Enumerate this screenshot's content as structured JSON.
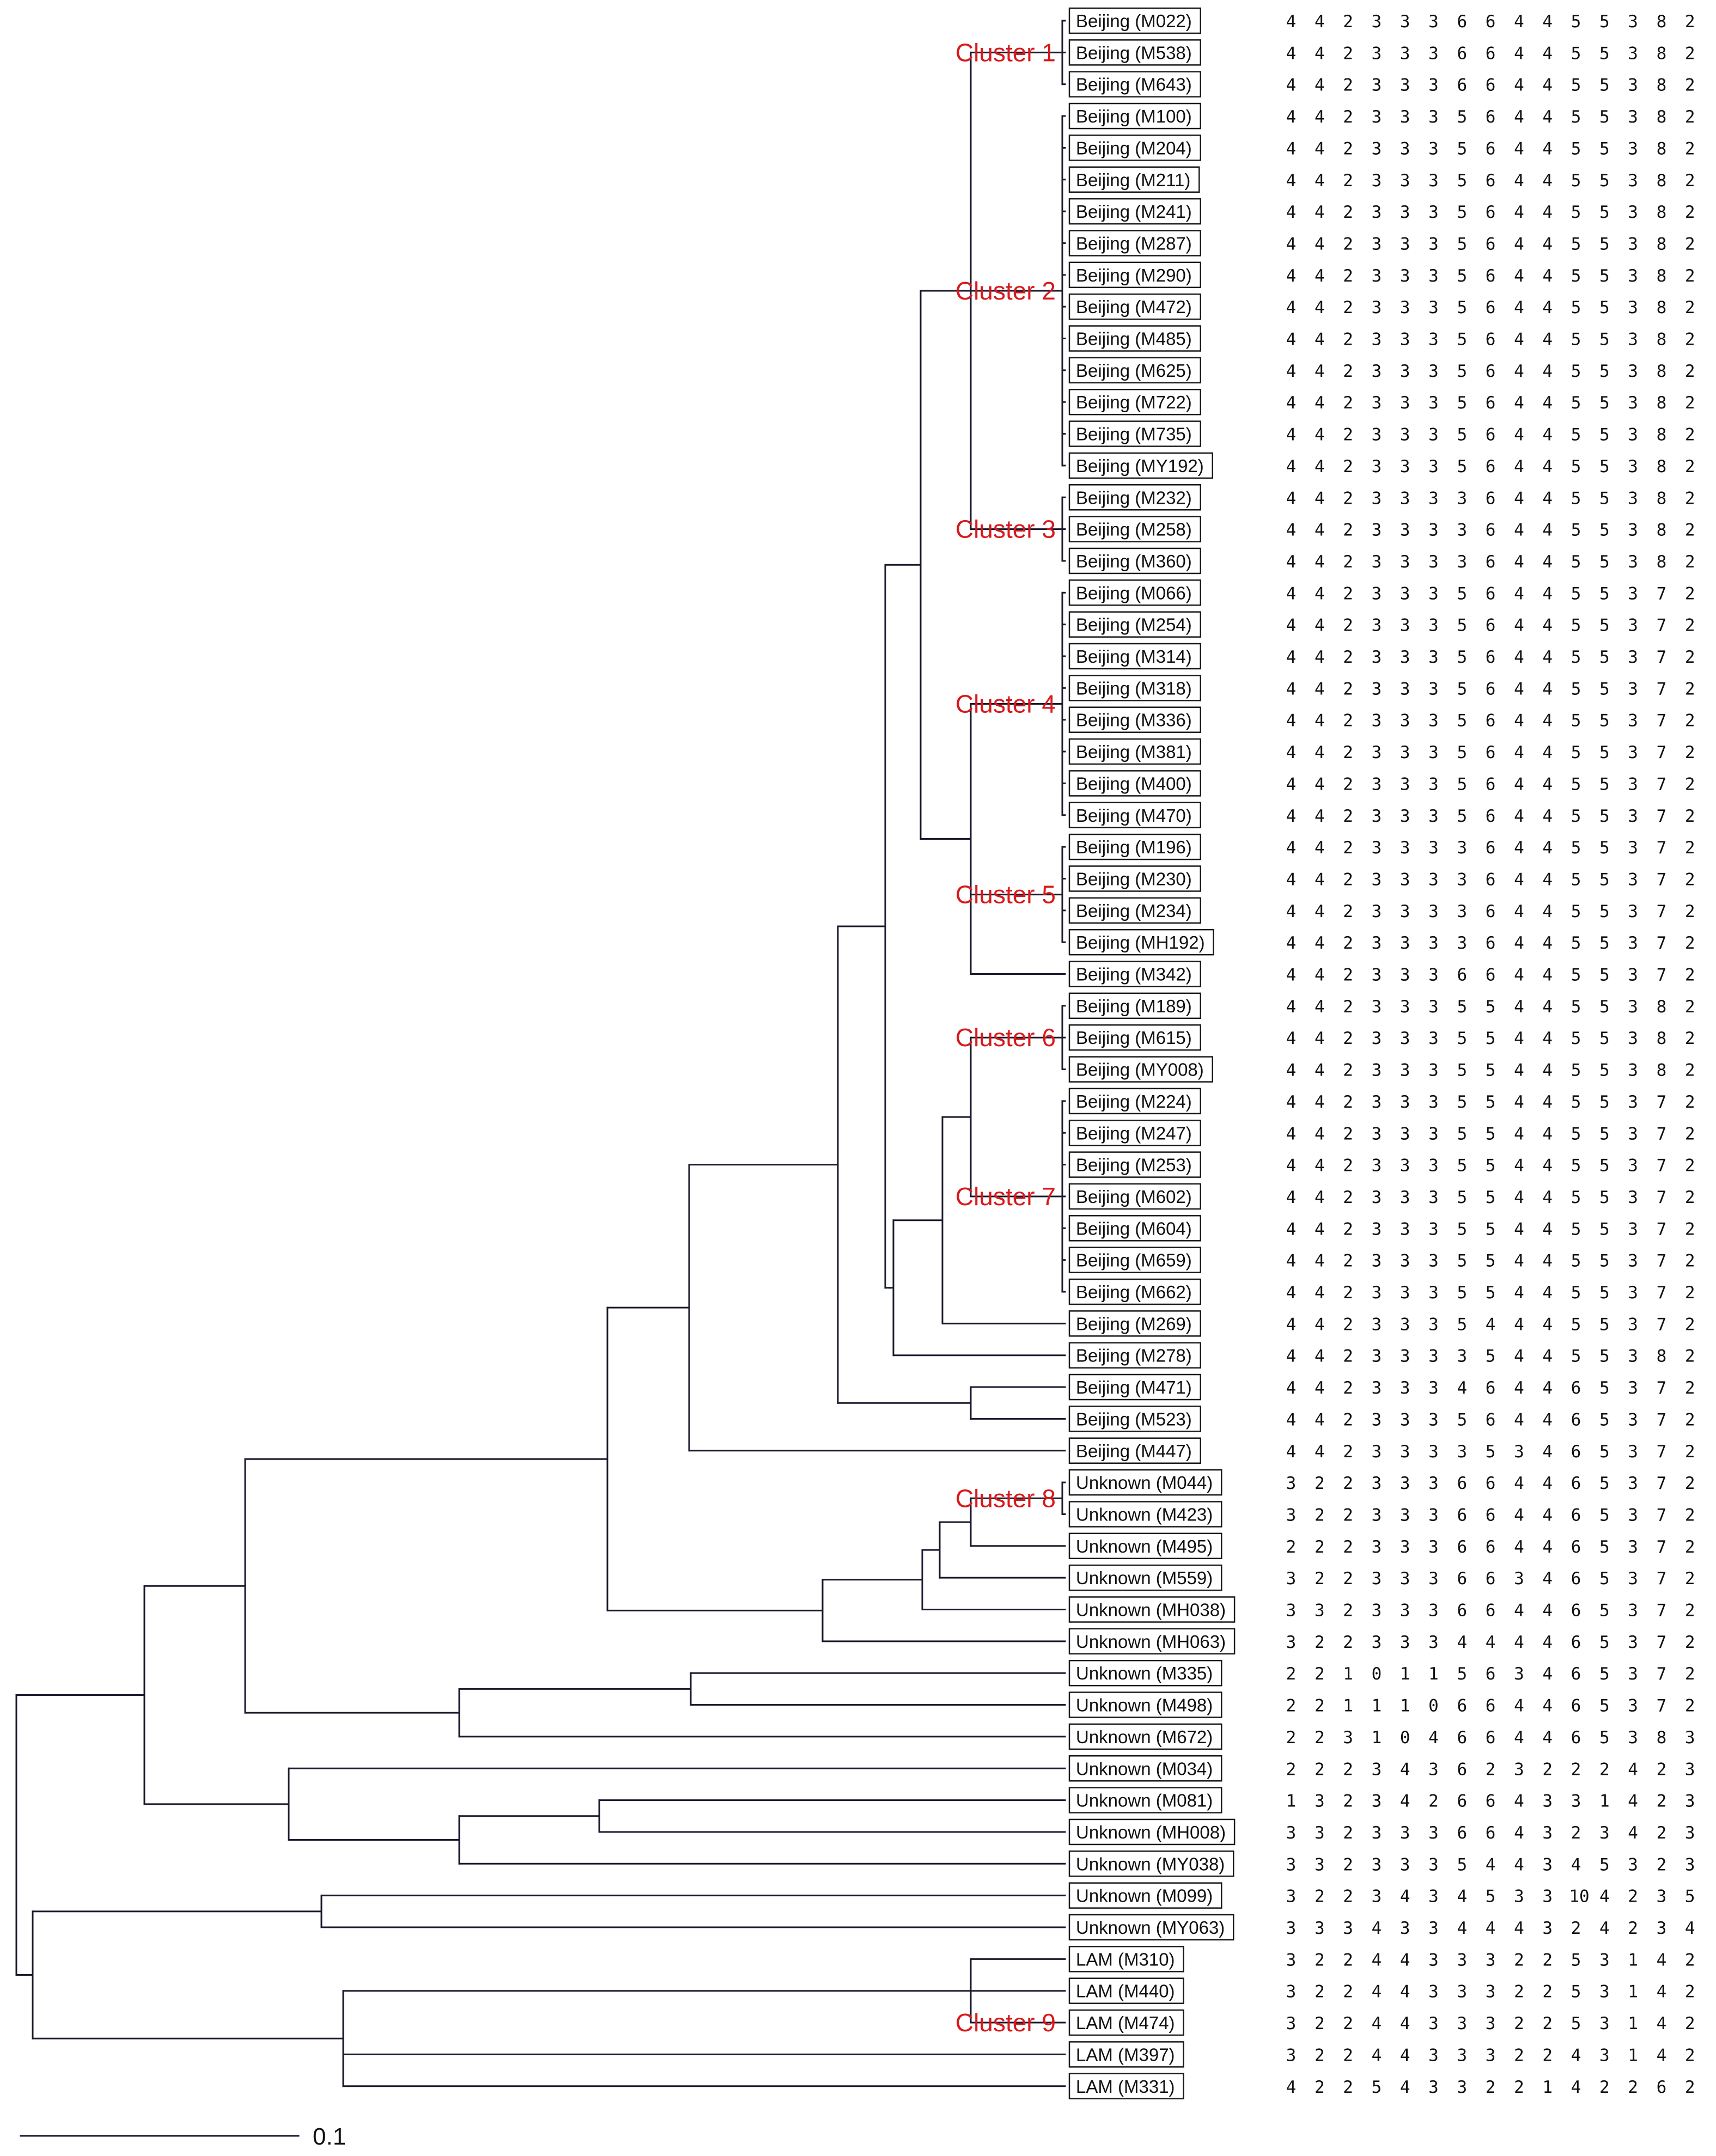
{
  "accent_color": "#d7191c",
  "scale_bar": {
    "label": "0.1"
  },
  "clusters": [
    {
      "label": "Cluster 1",
      "first": 0,
      "last": 2
    },
    {
      "label": "Cluster 2",
      "first": 3,
      "last": 14
    },
    {
      "label": "Cluster 3",
      "first": 15,
      "last": 17
    },
    {
      "label": "Cluster 4",
      "first": 18,
      "last": 25
    },
    {
      "label": "Cluster 5",
      "first": 26,
      "last": 29
    },
    {
      "label": "Cluster 6",
      "first": 31,
      "last": 33
    },
    {
      "label": "Cluster 7",
      "first": 34,
      "last": 40
    },
    {
      "label": "Cluster 8",
      "first": 46,
      "last": 47
    },
    {
      "label": "Cluster 9",
      "first": 62,
      "last": 64
    }
  ],
  "strains": [
    {
      "name": "Beijing (M022)",
      "code": [
        "4",
        "4",
        "2",
        "3",
        "3",
        "3",
        "6",
        "6",
        "4",
        "4",
        "5",
        "5",
        "3",
        "8",
        "2"
      ]
    },
    {
      "name": "Beijing (M538)",
      "code": [
        "4",
        "4",
        "2",
        "3",
        "3",
        "3",
        "6",
        "6",
        "4",
        "4",
        "5",
        "5",
        "3",
        "8",
        "2"
      ]
    },
    {
      "name": "Beijing (M643)",
      "code": [
        "4",
        "4",
        "2",
        "3",
        "3",
        "3",
        "6",
        "6",
        "4",
        "4",
        "5",
        "5",
        "3",
        "8",
        "2"
      ]
    },
    {
      "name": "Beijing (M100)",
      "code": [
        "4",
        "4",
        "2",
        "3",
        "3",
        "3",
        "5",
        "6",
        "4",
        "4",
        "5",
        "5",
        "3",
        "8",
        "2"
      ]
    },
    {
      "name": "Beijing (M204)",
      "code": [
        "4",
        "4",
        "2",
        "3",
        "3",
        "3",
        "5",
        "6",
        "4",
        "4",
        "5",
        "5",
        "3",
        "8",
        "2"
      ]
    },
    {
      "name": "Beijing (M211)",
      "code": [
        "4",
        "4",
        "2",
        "3",
        "3",
        "3",
        "5",
        "6",
        "4",
        "4",
        "5",
        "5",
        "3",
        "8",
        "2"
      ]
    },
    {
      "name": "Beijing (M241)",
      "code": [
        "4",
        "4",
        "2",
        "3",
        "3",
        "3",
        "5",
        "6",
        "4",
        "4",
        "5",
        "5",
        "3",
        "8",
        "2"
      ]
    },
    {
      "name": "Beijing (M287)",
      "code": [
        "4",
        "4",
        "2",
        "3",
        "3",
        "3",
        "5",
        "6",
        "4",
        "4",
        "5",
        "5",
        "3",
        "8",
        "2"
      ]
    },
    {
      "name": "Beijing (M290)",
      "code": [
        "4",
        "4",
        "2",
        "3",
        "3",
        "3",
        "5",
        "6",
        "4",
        "4",
        "5",
        "5",
        "3",
        "8",
        "2"
      ]
    },
    {
      "name": "Beijing (M472)",
      "code": [
        "4",
        "4",
        "2",
        "3",
        "3",
        "3",
        "5",
        "6",
        "4",
        "4",
        "5",
        "5",
        "3",
        "8",
        "2"
      ]
    },
    {
      "name": "Beijing (M485)",
      "code": [
        "4",
        "4",
        "2",
        "3",
        "3",
        "3",
        "5",
        "6",
        "4",
        "4",
        "5",
        "5",
        "3",
        "8",
        "2"
      ]
    },
    {
      "name": "Beijing (M625)",
      "code": [
        "4",
        "4",
        "2",
        "3",
        "3",
        "3",
        "5",
        "6",
        "4",
        "4",
        "5",
        "5",
        "3",
        "8",
        "2"
      ]
    },
    {
      "name": "Beijing (M722)",
      "code": [
        "4",
        "4",
        "2",
        "3",
        "3",
        "3",
        "5",
        "6",
        "4",
        "4",
        "5",
        "5",
        "3",
        "8",
        "2"
      ]
    },
    {
      "name": "Beijing (M735)",
      "code": [
        "4",
        "4",
        "2",
        "3",
        "3",
        "3",
        "5",
        "6",
        "4",
        "4",
        "5",
        "5",
        "3",
        "8",
        "2"
      ]
    },
    {
      "name": "Beijing (MY192)",
      "code": [
        "4",
        "4",
        "2",
        "3",
        "3",
        "3",
        "5",
        "6",
        "4",
        "4",
        "5",
        "5",
        "3",
        "8",
        "2"
      ]
    },
    {
      "name": "Beijing (M232)",
      "code": [
        "4",
        "4",
        "2",
        "3",
        "3",
        "3",
        "3",
        "6",
        "4",
        "4",
        "5",
        "5",
        "3",
        "8",
        "2"
      ]
    },
    {
      "name": "Beijing (M258)",
      "code": [
        "4",
        "4",
        "2",
        "3",
        "3",
        "3",
        "3",
        "6",
        "4",
        "4",
        "5",
        "5",
        "3",
        "8",
        "2"
      ]
    },
    {
      "name": "Beijing (M360)",
      "code": [
        "4",
        "4",
        "2",
        "3",
        "3",
        "3",
        "3",
        "6",
        "4",
        "4",
        "5",
        "5",
        "3",
        "8",
        "2"
      ]
    },
    {
      "name": "Beijing (M066)",
      "code": [
        "4",
        "4",
        "2",
        "3",
        "3",
        "3",
        "5",
        "6",
        "4",
        "4",
        "5",
        "5",
        "3",
        "7",
        "2"
      ]
    },
    {
      "name": "Beijing (M254)",
      "code": [
        "4",
        "4",
        "2",
        "3",
        "3",
        "3",
        "5",
        "6",
        "4",
        "4",
        "5",
        "5",
        "3",
        "7",
        "2"
      ]
    },
    {
      "name": "Beijing (M314)",
      "code": [
        "4",
        "4",
        "2",
        "3",
        "3",
        "3",
        "5",
        "6",
        "4",
        "4",
        "5",
        "5",
        "3",
        "7",
        "2"
      ]
    },
    {
      "name": "Beijing (M318)",
      "code": [
        "4",
        "4",
        "2",
        "3",
        "3",
        "3",
        "5",
        "6",
        "4",
        "4",
        "5",
        "5",
        "3",
        "7",
        "2"
      ]
    },
    {
      "name": "Beijing (M336)",
      "code": [
        "4",
        "4",
        "2",
        "3",
        "3",
        "3",
        "5",
        "6",
        "4",
        "4",
        "5",
        "5",
        "3",
        "7",
        "2"
      ]
    },
    {
      "name": "Beijing (M381)",
      "code": [
        "4",
        "4",
        "2",
        "3",
        "3",
        "3",
        "5",
        "6",
        "4",
        "4",
        "5",
        "5",
        "3",
        "7",
        "2"
      ]
    },
    {
      "name": "Beijing (M400)",
      "code": [
        "4",
        "4",
        "2",
        "3",
        "3",
        "3",
        "5",
        "6",
        "4",
        "4",
        "5",
        "5",
        "3",
        "7",
        "2"
      ]
    },
    {
      "name": "Beijing (M470)",
      "code": [
        "4",
        "4",
        "2",
        "3",
        "3",
        "3",
        "5",
        "6",
        "4",
        "4",
        "5",
        "5",
        "3",
        "7",
        "2"
      ]
    },
    {
      "name": "Beijing (M196)",
      "code": [
        "4",
        "4",
        "2",
        "3",
        "3",
        "3",
        "3",
        "6",
        "4",
        "4",
        "5",
        "5",
        "3",
        "7",
        "2"
      ]
    },
    {
      "name": "Beijing (M230)",
      "code": [
        "4",
        "4",
        "2",
        "3",
        "3",
        "3",
        "3",
        "6",
        "4",
        "4",
        "5",
        "5",
        "3",
        "7",
        "2"
      ]
    },
    {
      "name": "Beijing (M234)",
      "code": [
        "4",
        "4",
        "2",
        "3",
        "3",
        "3",
        "3",
        "6",
        "4",
        "4",
        "5",
        "5",
        "3",
        "7",
        "2"
      ]
    },
    {
      "name": "Beijing (MH192)",
      "code": [
        "4",
        "4",
        "2",
        "3",
        "3",
        "3",
        "3",
        "6",
        "4",
        "4",
        "5",
        "5",
        "3",
        "7",
        "2"
      ]
    },
    {
      "name": "Beijing (M342)",
      "code": [
        "4",
        "4",
        "2",
        "3",
        "3",
        "3",
        "6",
        "6",
        "4",
        "4",
        "5",
        "5",
        "3",
        "7",
        "2"
      ]
    },
    {
      "name": "Beijing (M189)",
      "code": [
        "4",
        "4",
        "2",
        "3",
        "3",
        "3",
        "5",
        "5",
        "4",
        "4",
        "5",
        "5",
        "3",
        "8",
        "2"
      ]
    },
    {
      "name": "Beijing (M615)",
      "code": [
        "4",
        "4",
        "2",
        "3",
        "3",
        "3",
        "5",
        "5",
        "4",
        "4",
        "5",
        "5",
        "3",
        "8",
        "2"
      ]
    },
    {
      "name": "Beijing (MY008)",
      "code": [
        "4",
        "4",
        "2",
        "3",
        "3",
        "3",
        "5",
        "5",
        "4",
        "4",
        "5",
        "5",
        "3",
        "8",
        "2"
      ]
    },
    {
      "name": "Beijing (M224)",
      "code": [
        "4",
        "4",
        "2",
        "3",
        "3",
        "3",
        "5",
        "5",
        "4",
        "4",
        "5",
        "5",
        "3",
        "7",
        "2"
      ]
    },
    {
      "name": "Beijing (M247)",
      "code": [
        "4",
        "4",
        "2",
        "3",
        "3",
        "3",
        "5",
        "5",
        "4",
        "4",
        "5",
        "5",
        "3",
        "7",
        "2"
      ]
    },
    {
      "name": "Beijing (M253)",
      "code": [
        "4",
        "4",
        "2",
        "3",
        "3",
        "3",
        "5",
        "5",
        "4",
        "4",
        "5",
        "5",
        "3",
        "7",
        "2"
      ]
    },
    {
      "name": "Beijing (M602)",
      "code": [
        "4",
        "4",
        "2",
        "3",
        "3",
        "3",
        "5",
        "5",
        "4",
        "4",
        "5",
        "5",
        "3",
        "7",
        "2"
      ]
    },
    {
      "name": "Beijing (M604)",
      "code": [
        "4",
        "4",
        "2",
        "3",
        "3",
        "3",
        "5",
        "5",
        "4",
        "4",
        "5",
        "5",
        "3",
        "7",
        "2"
      ]
    },
    {
      "name": "Beijing (M659)",
      "code": [
        "4",
        "4",
        "2",
        "3",
        "3",
        "3",
        "5",
        "5",
        "4",
        "4",
        "5",
        "5",
        "3",
        "7",
        "2"
      ]
    },
    {
      "name": "Beijing (M662)",
      "code": [
        "4",
        "4",
        "2",
        "3",
        "3",
        "3",
        "5",
        "5",
        "4",
        "4",
        "5",
        "5",
        "3",
        "7",
        "2"
      ]
    },
    {
      "name": "Beijing (M269)",
      "code": [
        "4",
        "4",
        "2",
        "3",
        "3",
        "3",
        "5",
        "4",
        "4",
        "4",
        "5",
        "5",
        "3",
        "7",
        "2"
      ]
    },
    {
      "name": "Beijing (M278)",
      "code": [
        "4",
        "4",
        "2",
        "3",
        "3",
        "3",
        "3",
        "5",
        "4",
        "4",
        "5",
        "5",
        "3",
        "8",
        "2"
      ]
    },
    {
      "name": "Beijing (M471)",
      "code": [
        "4",
        "4",
        "2",
        "3",
        "3",
        "3",
        "4",
        "6",
        "4",
        "4",
        "6",
        "5",
        "3",
        "7",
        "2"
      ]
    },
    {
      "name": "Beijing (M523)",
      "code": [
        "4",
        "4",
        "2",
        "3",
        "3",
        "3",
        "5",
        "6",
        "4",
        "4",
        "6",
        "5",
        "3",
        "7",
        "2"
      ]
    },
    {
      "name": "Beijing (M447)",
      "code": [
        "4",
        "4",
        "2",
        "3",
        "3",
        "3",
        "3",
        "5",
        "3",
        "4",
        "6",
        "5",
        "3",
        "7",
        "2"
      ]
    },
    {
      "name": "Unknown (M044)",
      "code": [
        "3",
        "2",
        "2",
        "3",
        "3",
        "3",
        "6",
        "6",
        "4",
        "4",
        "6",
        "5",
        "3",
        "7",
        "2"
      ]
    },
    {
      "name": "Unknown (M423)",
      "code": [
        "3",
        "2",
        "2",
        "3",
        "3",
        "3",
        "6",
        "6",
        "4",
        "4",
        "6",
        "5",
        "3",
        "7",
        "2"
      ]
    },
    {
      "name": "Unknown (M495)",
      "code": [
        "2",
        "2",
        "2",
        "3",
        "3",
        "3",
        "6",
        "6",
        "4",
        "4",
        "6",
        "5",
        "3",
        "7",
        "2"
      ]
    },
    {
      "name": "Unknown (M559)",
      "code": [
        "3",
        "2",
        "2",
        "3",
        "3",
        "3",
        "6",
        "6",
        "3",
        "4",
        "6",
        "5",
        "3",
        "7",
        "2"
      ]
    },
    {
      "name": "Unknown (MH038)",
      "code": [
        "3",
        "3",
        "2",
        "3",
        "3",
        "3",
        "6",
        "6",
        "4",
        "4",
        "6",
        "5",
        "3",
        "7",
        "2"
      ]
    },
    {
      "name": "Unknown (MH063)",
      "code": [
        "3",
        "2",
        "2",
        "3",
        "3",
        "3",
        "4",
        "4",
        "4",
        "4",
        "6",
        "5",
        "3",
        "7",
        "2"
      ]
    },
    {
      "name": "Unknown (M335)",
      "code": [
        "2",
        "2",
        "1",
        "0",
        "1",
        "1",
        "5",
        "6",
        "3",
        "4",
        "6",
        "5",
        "3",
        "7",
        "2"
      ]
    },
    {
      "name": "Unknown (M498)",
      "code": [
        "2",
        "2",
        "1",
        "1",
        "1",
        "0",
        "6",
        "6",
        "4",
        "4",
        "6",
        "5",
        "3",
        "7",
        "2"
      ]
    },
    {
      "name": "Unknown (M672)",
      "code": [
        "2",
        "2",
        "3",
        "1",
        "0",
        "4",
        "6",
        "6",
        "4",
        "4",
        "6",
        "5",
        "3",
        "8",
        "3"
      ]
    },
    {
      "name": "Unknown (M034)",
      "code": [
        "2",
        "2",
        "2",
        "3",
        "4",
        "3",
        "6",
        "2",
        "3",
        "2",
        "2",
        "2",
        "4",
        "2",
        "3"
      ]
    },
    {
      "name": "Unknown (M081)",
      "code": [
        "1",
        "3",
        "2",
        "3",
        "4",
        "2",
        "6",
        "6",
        "4",
        "3",
        "3",
        "1",
        "4",
        "2",
        "3"
      ]
    },
    {
      "name": "Unknown (MH008)",
      "code": [
        "3",
        "3",
        "2",
        "3",
        "3",
        "3",
        "6",
        "6",
        "4",
        "3",
        "2",
        "3",
        "4",
        "2",
        "3"
      ]
    },
    {
      "name": "Unknown (MY038)",
      "code": [
        "3",
        "3",
        "2",
        "3",
        "3",
        "3",
        "5",
        "4",
        "4",
        "3",
        "4",
        "5",
        "3",
        "2",
        "3"
      ]
    },
    {
      "name": "Unknown (M099)",
      "code": [
        "3",
        "2",
        "2",
        "3",
        "4",
        "3",
        "4",
        "5",
        "3",
        "3",
        "10",
        "4",
        "2",
        "3",
        "5"
      ]
    },
    {
      "name": "Unknown (MY063)",
      "code": [
        "3",
        "3",
        "3",
        "4",
        "3",
        "3",
        "4",
        "4",
        "4",
        "3",
        "2",
        "4",
        "2",
        "3",
        "4"
      ]
    },
    {
      "name": "LAM (M310)",
      "code": [
        "3",
        "2",
        "2",
        "4",
        "4",
        "3",
        "3",
        "3",
        "2",
        "2",
        "5",
        "3",
        "1",
        "4",
        "2"
      ]
    },
    {
      "name": "LAM (M440)",
      "code": [
        "3",
        "2",
        "2",
        "4",
        "4",
        "3",
        "3",
        "3",
        "2",
        "2",
        "5",
        "3",
        "1",
        "4",
        "2"
      ]
    },
    {
      "name": "LAM (M474)",
      "code": [
        "3",
        "2",
        "2",
        "4",
        "4",
        "3",
        "3",
        "3",
        "2",
        "2",
        "5",
        "3",
        "1",
        "4",
        "2"
      ]
    },
    {
      "name": "LAM (M397)",
      "code": [
        "3",
        "2",
        "2",
        "4",
        "4",
        "3",
        "3",
        "3",
        "2",
        "2",
        "4",
        "3",
        "1",
        "4",
        "2"
      ]
    },
    {
      "name": "LAM (M331)",
      "code": [
        "4",
        "2",
        "2",
        "5",
        "4",
        "3",
        "3",
        "2",
        "2",
        "1",
        "4",
        "2",
        "2",
        "6",
        "2"
      ]
    }
  ]
}
